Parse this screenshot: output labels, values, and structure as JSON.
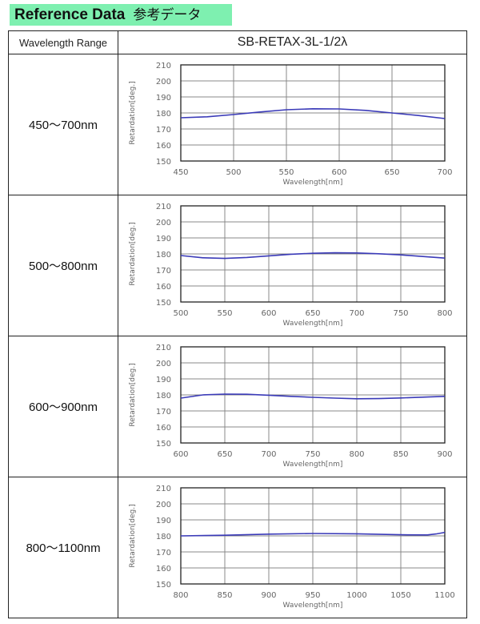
{
  "header": {
    "title": "Reference Data",
    "title_jp": "参考データ",
    "accent_color": "#7ef0b0"
  },
  "table": {
    "col1_header": "Wavelength Range",
    "col2_header": "SB-RETAX-3L-1/2λ",
    "rows": [
      {
        "label": "450～700nm"
      },
      {
        "label": "500～800nm"
      },
      {
        "label": "600～900nm"
      },
      {
        "label": "800～1100nm"
      }
    ]
  },
  "chart_data": [
    {
      "type": "line",
      "xlabel": "Wavelength[nm]",
      "ylabel": "Retardation[deg.]",
      "xlim": [
        450,
        700
      ],
      "ylim": [
        150,
        210
      ],
      "xticks": [
        450,
        500,
        550,
        600,
        650,
        700
      ],
      "yticks": [
        150,
        160,
        170,
        180,
        190,
        200,
        210
      ],
      "grid": true,
      "color": "#3a3ab8",
      "x": [
        450,
        475,
        500,
        525,
        550,
        575,
        600,
        625,
        650,
        675,
        700
      ],
      "y": [
        177,
        177.6,
        179,
        180.6,
        182,
        182.6,
        182.5,
        181.6,
        180,
        178.4,
        176.5
      ]
    },
    {
      "type": "line",
      "xlabel": "Wavelength[nm]",
      "ylabel": "Retardation[deg.]",
      "xlim": [
        500,
        800
      ],
      "ylim": [
        150,
        210
      ],
      "xticks": [
        500,
        550,
        600,
        650,
        700,
        750,
        800
      ],
      "yticks": [
        150,
        160,
        170,
        180,
        190,
        200,
        210
      ],
      "grid": true,
      "color": "#3a3ab8",
      "x": [
        500,
        525,
        550,
        575,
        600,
        625,
        650,
        675,
        700,
        725,
        750,
        775,
        800
      ],
      "y": [
        179,
        177.6,
        177.2,
        177.8,
        178.8,
        179.8,
        180.4,
        180.7,
        180.6,
        180.1,
        179.4,
        178.4,
        177.4
      ]
    },
    {
      "type": "line",
      "xlabel": "Wavelength[nm]",
      "ylabel": "Retardation[deg.]",
      "xlim": [
        600,
        900
      ],
      "ylim": [
        150,
        210
      ],
      "xticks": [
        600,
        650,
        700,
        750,
        800,
        850,
        900
      ],
      "yticks": [
        150,
        160,
        170,
        180,
        190,
        200,
        210
      ],
      "grid": true,
      "color": "#3a3ab8",
      "x": [
        600,
        625,
        650,
        675,
        700,
        725,
        750,
        775,
        800,
        825,
        850,
        875,
        900
      ],
      "y": [
        178,
        180,
        180.5,
        180.4,
        179.8,
        179.1,
        178.5,
        178,
        177.6,
        177.7,
        178.1,
        178.6,
        179.1
      ]
    },
    {
      "type": "line",
      "xlabel": "Wavelength[nm]",
      "ylabel": "Retardation[deg.]",
      "xlim": [
        800,
        1100
      ],
      "ylim": [
        150,
        210
      ],
      "xticks": [
        800,
        850,
        900,
        950,
        1000,
        1050,
        1100
      ],
      "yticks": [
        150,
        160,
        170,
        180,
        190,
        200,
        210
      ],
      "grid": true,
      "color": "#3a3ab8",
      "x": [
        800,
        850,
        900,
        950,
        1000,
        1050,
        1080,
        1090,
        1100
      ],
      "y": [
        180,
        180.4,
        181.1,
        181.5,
        181.3,
        180.7,
        180.6,
        181.2,
        182.2
      ]
    }
  ]
}
